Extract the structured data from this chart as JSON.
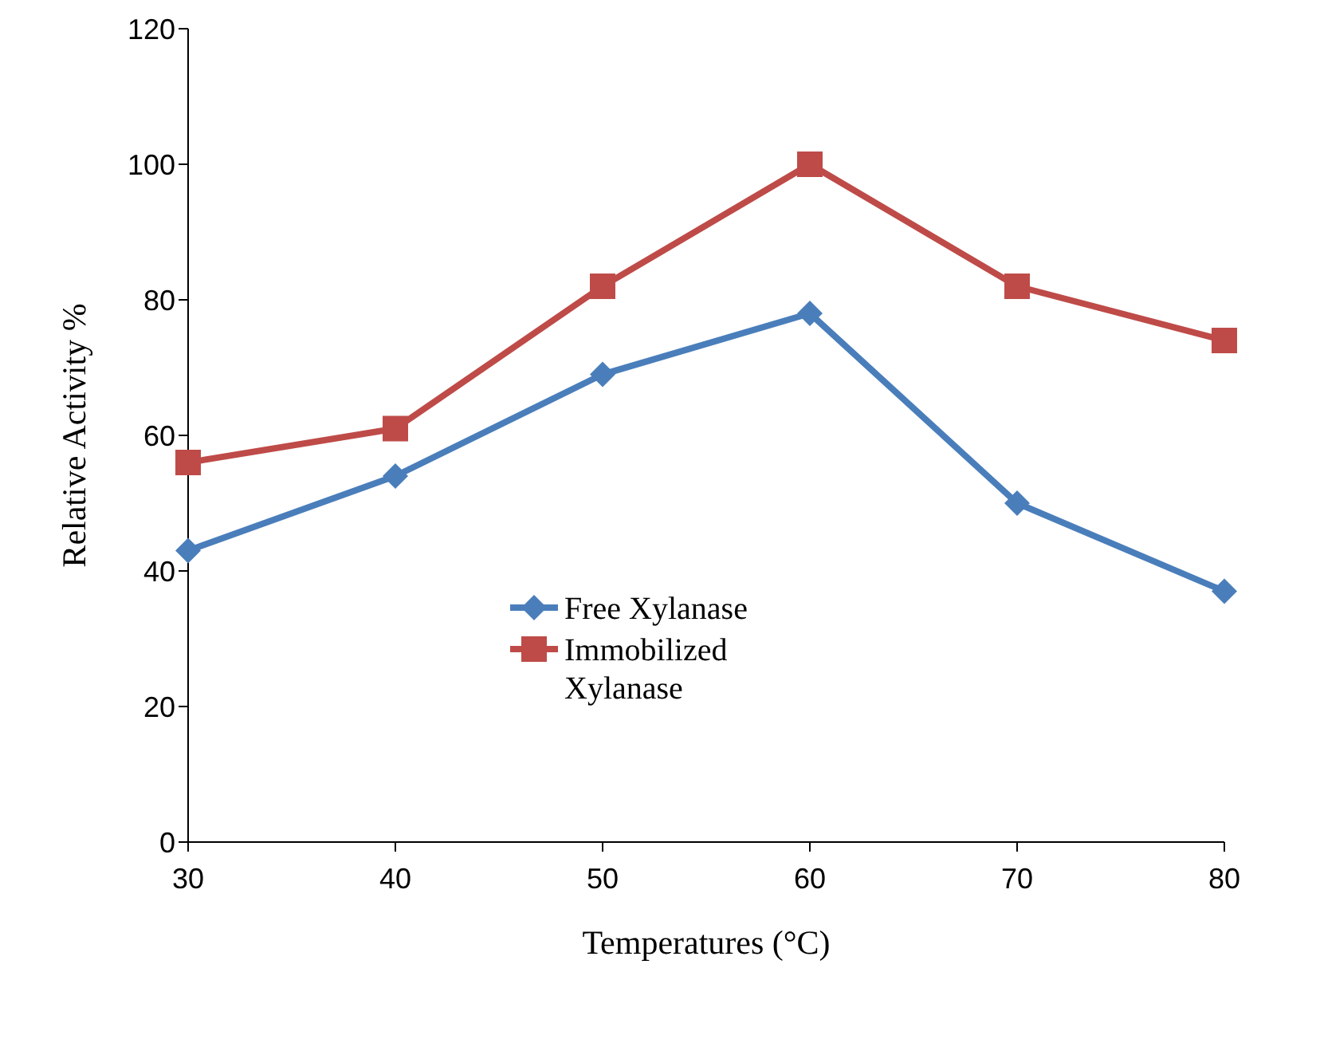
{
  "chart_data": {
    "type": "line",
    "xlabel": "Temperatures (°C)",
    "ylabel": "Relative Activity %",
    "categories": [
      "30",
      "40",
      "50",
      "60",
      "70",
      "80"
    ],
    "series": [
      {
        "name": "Free Xylanase",
        "color": "#4a7ebb",
        "marker": "diamond",
        "values": [
          43,
          54,
          69,
          78,
          50,
          37
        ]
      },
      {
        "name": "Immobilized Xylanase",
        "color": "#be4b48",
        "marker": "square",
        "values": [
          56,
          61,
          82,
          100,
          82,
          74
        ]
      }
    ],
    "ylim": [
      0,
      120
    ],
    "yticks": [
      0,
      20,
      40,
      60,
      80,
      100,
      120
    ],
    "grid": false,
    "legend": "center"
  }
}
